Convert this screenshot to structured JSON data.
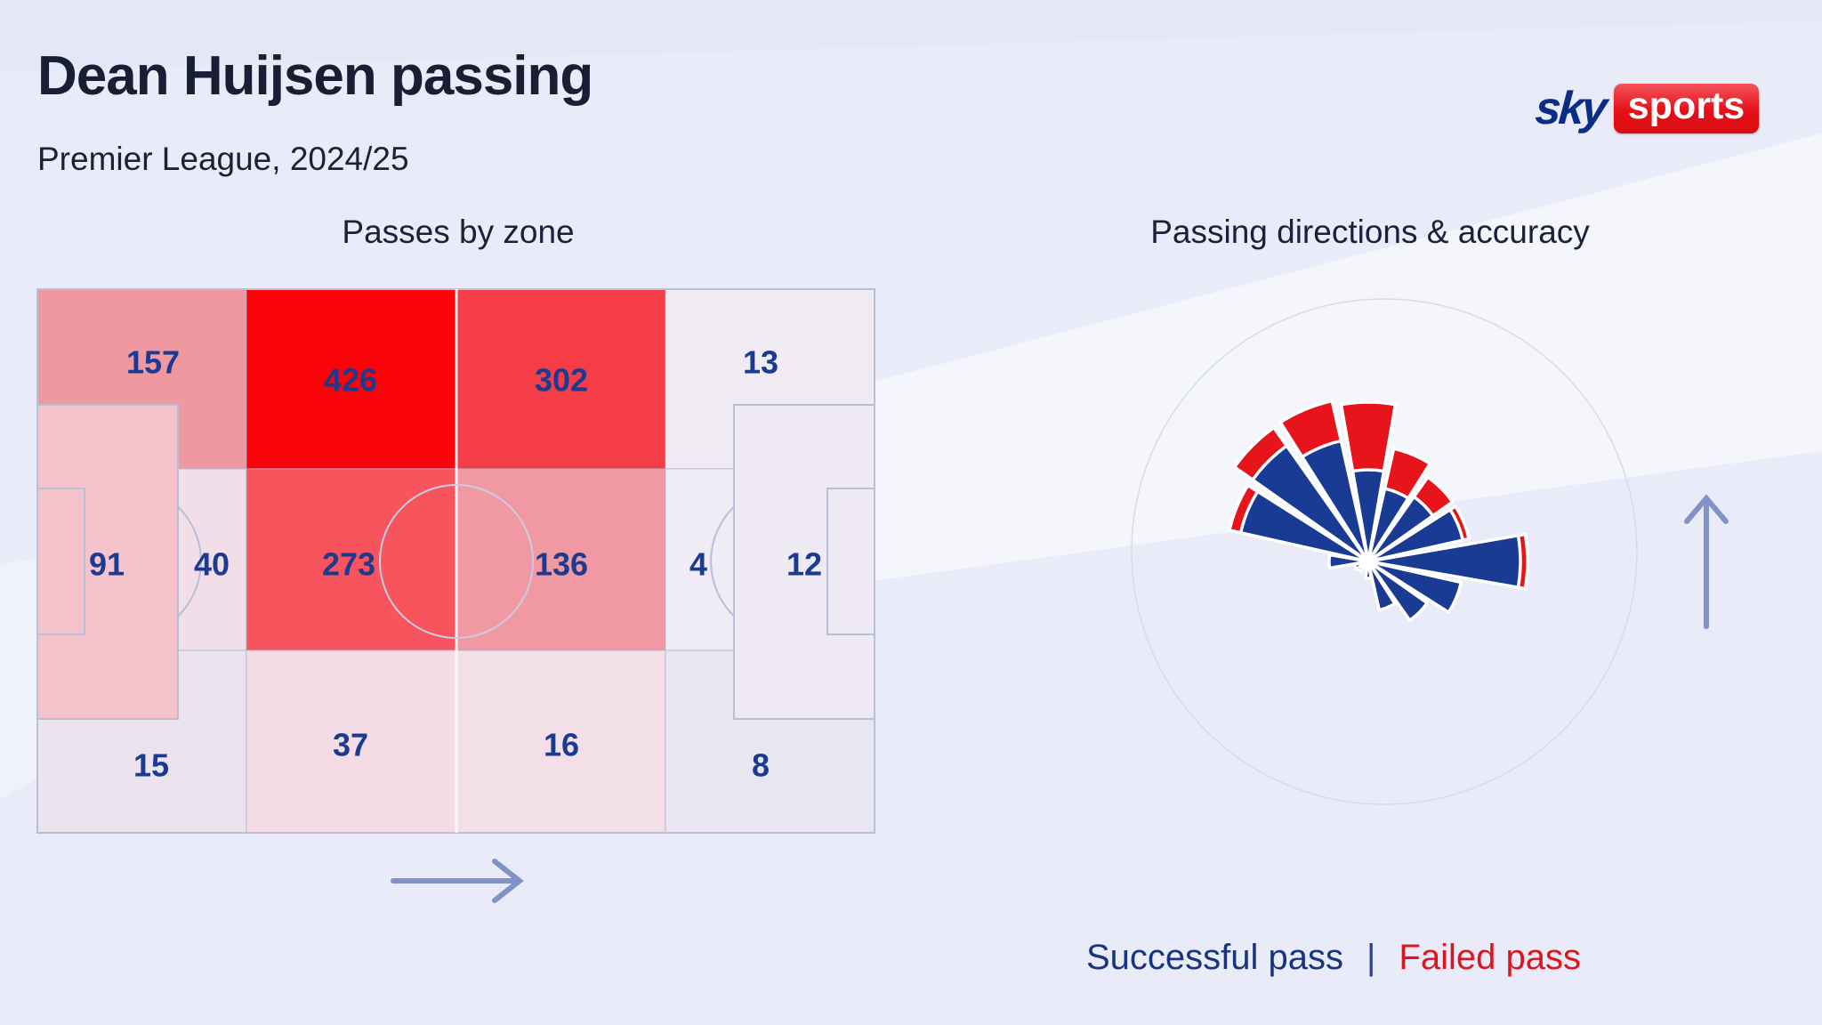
{
  "header": {
    "title": "Dean Huijsen passing",
    "subtitle": "Premier League, 2024/25"
  },
  "brand": {
    "sky_text": "sky",
    "sports_text": "sports"
  },
  "panels": {
    "left_title": "Passes by zone",
    "right_title": "Passing directions & accuracy"
  },
  "legend": {
    "successful_label": "Successful pass",
    "separator": "|",
    "failed_label": "Failed pass"
  },
  "colors": {
    "success_blue": "#1a3b94",
    "fail_red": "#e8141b",
    "number_navy": "#1c3a90",
    "pitch_line": "#b7c0d8",
    "halfway_line": "rgba(255,255,255,0.85)",
    "zone_border": "rgba(168,178,208,0.45)",
    "rose_ring": "#d7dbe9",
    "arrow_blue": "#8092c7"
  },
  "chart_data": [
    {
      "type": "heatmap",
      "title": "Passes by zone",
      "unit": "passes",
      "attack_direction": "right",
      "zones": [
        {
          "id": "z157",
          "position": "own-third top flank",
          "value": 157,
          "color": "#f0989f"
        },
        {
          "id": "z426",
          "position": "middle-third top, centre-left",
          "value": 426,
          "color": "#fb0309"
        },
        {
          "id": "z302",
          "position": "middle-third top, centre-right",
          "value": 302,
          "color": "#f53d47"
        },
        {
          "id": "z13",
          "position": "final-third top flank",
          "value": 13,
          "color": "#f1ecf4"
        },
        {
          "id": "z91",
          "position": "own penalty area",
          "value": 91,
          "color": "#f4c3cb"
        },
        {
          "id": "z40",
          "position": "edge of own penalty area",
          "value": 40,
          "color": "#f2dee8"
        },
        {
          "id": "z273",
          "position": "centre circle left",
          "value": 273,
          "color": "#f7545d"
        },
        {
          "id": "z136",
          "position": "centre circle right",
          "value": 136,
          "color": "#f199a3"
        },
        {
          "id": "z4",
          "position": "edge of opposition penalty area",
          "value": 4,
          "color": "#efecf6"
        },
        {
          "id": "z12",
          "position": "opposition penalty area",
          "value": 12,
          "color": "#eee9f3"
        },
        {
          "id": "z15",
          "position": "own-third bottom flank",
          "value": 15,
          "color": "#ebe3ee"
        },
        {
          "id": "z37",
          "position": "middle-third bottom, centre-left",
          "value": 37,
          "color": "#f3dce5"
        },
        {
          "id": "z16",
          "position": "middle-third bottom, centre-right",
          "value": 16,
          "color": "#f2dfe7"
        },
        {
          "id": "z8",
          "position": "final-third bottom flank",
          "value": 8,
          "color": "#eae6f1"
        }
      ]
    },
    {
      "type": "rose",
      "title": "Passing directions & accuracy",
      "sector_width_deg": 22.5,
      "angle_convention": "0 = screen right, counterclockwise positive; attack direction is up",
      "radial_unit": "relative pass volume (no numeric axis shown); failed stacked outside successful",
      "series": [
        {
          "name": "Successful pass",
          "color": "#1a3b94"
        },
        {
          "name": "Failed pass",
          "color": "#e8141b"
        }
      ],
      "sectors": [
        {
          "angle_deg": 0,
          "successful": 172,
          "failed": 7
        },
        {
          "angle_deg": 22.5,
          "successful": 110,
          "failed": 6
        },
        {
          "angle_deg": 45,
          "successful": 90,
          "failed": 26
        },
        {
          "angle_deg": 67.5,
          "successful": 85,
          "failed": 45
        },
        {
          "angle_deg": 90,
          "successful": 104,
          "failed": 75
        },
        {
          "angle_deg": 112.5,
          "successful": 140,
          "failed": 45
        },
        {
          "angle_deg": 135,
          "successful": 160,
          "failed": 24
        },
        {
          "angle_deg": 157.5,
          "successful": 148,
          "failed": 12
        },
        {
          "angle_deg": 180,
          "successful": 44,
          "failed": 0
        },
        {
          "angle_deg": 202.5,
          "successful": 16,
          "failed": 0
        },
        {
          "angle_deg": 225,
          "successful": 14,
          "failed": 0
        },
        {
          "angle_deg": -90,
          "successful": 19,
          "failed": 0
        },
        {
          "angle_deg": -67.5,
          "successful": 56,
          "failed": 0
        },
        {
          "angle_deg": -45,
          "successful": 81,
          "failed": 0
        },
        {
          "angle_deg": -22.5,
          "successful": 107,
          "failed": 0
        }
      ]
    }
  ]
}
